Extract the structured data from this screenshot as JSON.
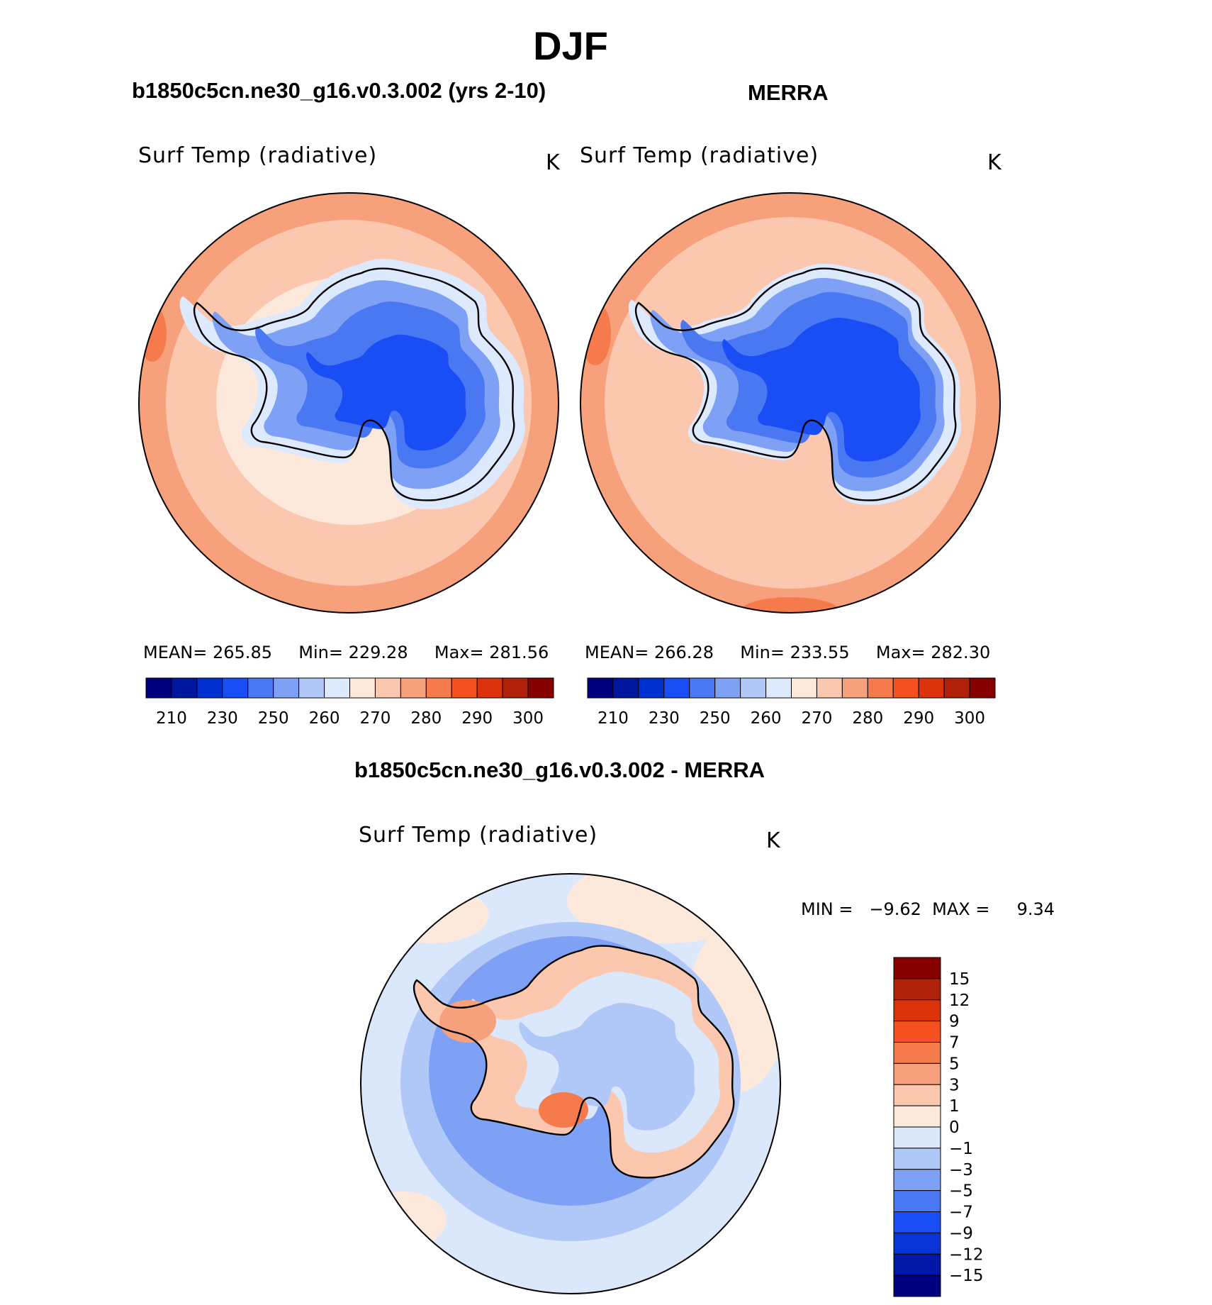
{
  "title": "DJF",
  "colors": {
    "abs_levels": [
      "#00007f",
      "#00169f",
      "#0030d0",
      "#1a4ef5",
      "#4a78f2",
      "#7ea1f5",
      "#b0c8f8",
      "#dde9fc",
      "#fde8dc",
      "#fbc8af",
      "#f6a07c",
      "#f57a4c",
      "#f5501f",
      "#dc320b",
      "#b0210a",
      "#860000"
    ],
    "diff_levels": [
      "#00007f",
      "#0018a8",
      "#0834d8",
      "#1a4ef5",
      "#4a78f2",
      "#7ea1f5",
      "#b0c8f8",
      "#dbe8fb",
      "#fde8dc",
      "#fbc8af",
      "#f6a07c",
      "#f57a4c",
      "#f5501f",
      "#dc320b",
      "#b0210a",
      "#860000"
    ],
    "coast": "#000000"
  },
  "panels": [
    {
      "title": "b1850c5cn.ne30_g16.v0.3.002 (yrs 2-10)",
      "variable": "Surf Temp (radiative)",
      "units": "K",
      "mean_label": "MEAN=",
      "mean": "265.85",
      "min_label": "Min=",
      "min": "229.28",
      "max_label": "Max=",
      "max": "281.56"
    },
    {
      "title": "MERRA",
      "variable": "Surf Temp (radiative)",
      "units": "K",
      "mean_label": "MEAN=",
      "mean": "266.28",
      "min_label": "Min=",
      "min": "233.55",
      "max_label": "Max=",
      "max": "282.30"
    },
    {
      "title": "b1850c5cn.ne30_g16.v0.3.002 - MERRA",
      "variable": "Surf Temp (radiative)",
      "units": "K",
      "minmax_label": "MIN =   −9.62  MAX =     9.34"
    }
  ],
  "chart_data": [
    {
      "type": "heatmap",
      "projection": "south-polar-stereographic",
      "title": "b1850c5cn.ne30_g16.v0.3.002 (yrs 2-10)",
      "variable": "Surf Temp (radiative)",
      "units": "K",
      "mean": 265.85,
      "min": 229.28,
      "max": 281.56,
      "colorbar_ticks": [
        "210",
        "230",
        "250",
        "260",
        "270",
        "280",
        "290",
        "300"
      ],
      "colorbar_orientation": "horizontal"
    },
    {
      "type": "heatmap",
      "projection": "south-polar-stereographic",
      "title": "MERRA",
      "variable": "Surf Temp (radiative)",
      "units": "K",
      "mean": 266.28,
      "min": 233.55,
      "max": 282.3,
      "colorbar_ticks": [
        "210",
        "230",
        "250",
        "260",
        "270",
        "280",
        "290",
        "300"
      ],
      "colorbar_orientation": "horizontal"
    },
    {
      "type": "heatmap",
      "projection": "south-polar-stereographic",
      "title": "b1850c5cn.ne30_g16.v0.3.002 - MERRA",
      "variable": "Surf Temp (radiative)",
      "units": "K",
      "min": -9.62,
      "max": 9.34,
      "colorbar_ticks": [
        "15",
        "12",
        "9",
        "7",
        "5",
        "3",
        "1",
        "0",
        "−1",
        "−3",
        "−5",
        "−7",
        "−9",
        "−12",
        "−15"
      ],
      "colorbar_orientation": "vertical"
    }
  ]
}
